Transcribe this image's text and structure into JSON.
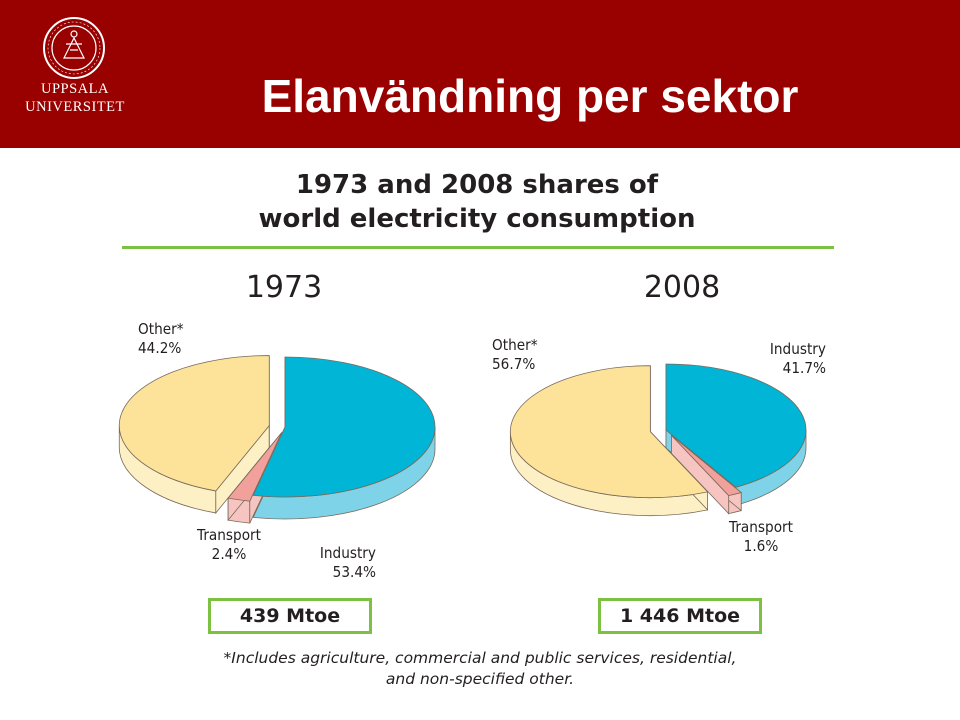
{
  "header": {
    "university_line1": "UPPSALA",
    "university_line2": "UNIVERSITET",
    "slide_title": "Elanvändning per sektor"
  },
  "colors": {
    "header_bg": "#990000",
    "industry": "#00b5d6",
    "industry_side": "#7fd3e8",
    "transport": "#f2a09b",
    "transport_side": "#f7c5c1",
    "other": "#fde39a",
    "other_side": "#fdf0c4",
    "accent_green": "#7cc142"
  },
  "chart_data": [
    {
      "type": "pie",
      "title_line1": "1973 and 2008 shares of",
      "title_line2": "world electricity consumption",
      "subtitle": "1973",
      "slices": [
        {
          "category": "Industry",
          "value": 53.4,
          "label": "53.4%"
        },
        {
          "category": "Transport",
          "value": 2.4,
          "label": "2.4%"
        },
        {
          "category": "Other*",
          "value": 44.2,
          "label": "44.2%"
        }
      ],
      "total": "439 Mtoe"
    },
    {
      "type": "pie",
      "subtitle": "2008",
      "slices": [
        {
          "category": "Industry",
          "value": 41.7,
          "label": "41.7%"
        },
        {
          "category": "Transport",
          "value": 1.6,
          "label": "1.6%"
        },
        {
          "category": "Other*",
          "value": 56.7,
          "label": "56.7%"
        }
      ],
      "total": "1 446 Mtoe"
    }
  ],
  "footnote_line1": "*Includes agriculture, commercial and public services, residential,",
  "footnote_line2": "and non-specified other."
}
